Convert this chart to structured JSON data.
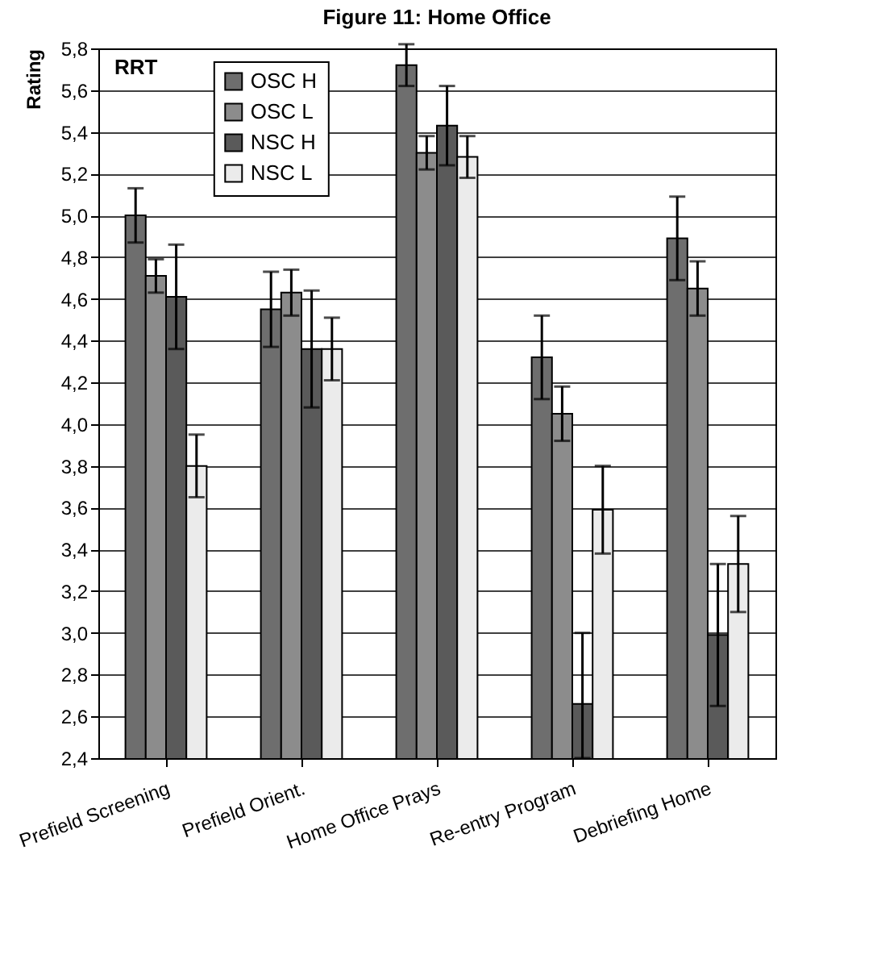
{
  "chart_data": {
    "type": "bar",
    "title": "Figure 11:  Home Office",
    "ylabel": "Rating",
    "annotations": [
      "RRT"
    ],
    "categories": [
      "Prefield Screening",
      "Prefield Orient.",
      "Home Office Prays",
      "Re-entry Program",
      "Debriefing Home"
    ],
    "series": [
      {
        "name": "OSC H",
        "color": "#6e6e6e",
        "values": [
          5.0,
          4.55,
          5.72,
          4.32,
          4.89
        ],
        "errors": [
          0.13,
          0.18,
          0.1,
          0.2,
          0.2
        ]
      },
      {
        "name": "OSC L",
        "color": "#8c8c8c",
        "values": [
          4.71,
          4.63,
          5.3,
          4.05,
          4.65
        ],
        "errors": [
          0.08,
          0.11,
          0.08,
          0.13,
          0.13
        ]
      },
      {
        "name": "NSC H",
        "color": "#5a5a5a",
        "values": [
          4.61,
          4.36,
          5.43,
          2.66,
          2.99
        ],
        "errors": [
          0.25,
          0.28,
          0.19,
          [
            2.4,
            3.0
          ],
          0.34
        ]
      },
      {
        "name": "NSC L",
        "color": "#ebebeb",
        "values": [
          3.8,
          4.36,
          5.28,
          3.59,
          3.33
        ],
        "errors": [
          0.15,
          0.15,
          0.1,
          0.21,
          0.23
        ]
      }
    ],
    "ylim": [
      2.4,
      5.8
    ],
    "yticks": [
      {
        "value": 2.4,
        "label": "2,4"
      },
      {
        "value": 2.6,
        "label": "2,6"
      },
      {
        "value": 2.8,
        "label": "2,8"
      },
      {
        "value": 3.0,
        "label": "3,0"
      },
      {
        "value": 3.2,
        "label": "3,2"
      },
      {
        "value": 3.4,
        "label": "3,4"
      },
      {
        "value": 3.6,
        "label": "3,6"
      },
      {
        "value": 3.8,
        "label": "3,8"
      },
      {
        "value": 4.0,
        "label": "4,0"
      },
      {
        "value": 4.2,
        "label": "4,2"
      },
      {
        "value": 4.4,
        "label": "4,4"
      },
      {
        "value": 4.6,
        "label": "4,6"
      },
      {
        "value": 4.8,
        "label": "4,8"
      },
      {
        "value": 5.0,
        "label": "5,0"
      },
      {
        "value": 5.2,
        "label": "5,2"
      },
      {
        "value": 5.4,
        "label": "5,4"
      },
      {
        "value": 5.6,
        "label": "5,6"
      },
      {
        "value": 5.8,
        "label": "5,8"
      }
    ],
    "grid": "y",
    "legend": "top left"
  }
}
